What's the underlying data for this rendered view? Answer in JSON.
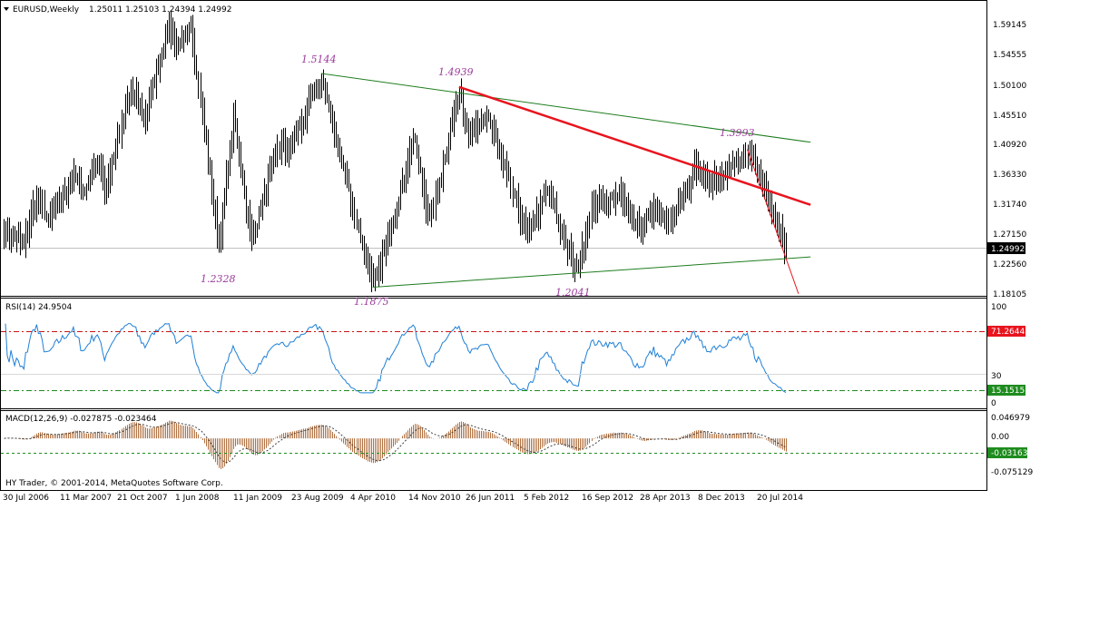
{
  "header": {
    "symbol_label": "EURUSD,Weekly",
    "ohlc": "1.25011 1.25103 1.24394 1.24992"
  },
  "price_panel": {
    "ticks": [
      "1.59145",
      "1.54555",
      "1.50100",
      "1.45510",
      "1.40920",
      "1.36330",
      "1.31740",
      "1.27150",
      "1.22560",
      "1.18105"
    ],
    "current_price": "1.24992",
    "annotations": [
      "1.5144",
      "1.4939",
      "1.3993",
      "1.2328",
      "1.1875",
      "1.2041"
    ]
  },
  "rsi_panel": {
    "title": "RSI(14) 24.9504",
    "ticks": [
      "100",
      "30",
      "0"
    ],
    "level_high_tag": "71.2644",
    "level_low_tag": "15.1515"
  },
  "macd_panel": {
    "title": "MACD(12,26,9) -0.027875 -0.023464",
    "ticks": [
      "0.046979",
      "0.00",
      "-0.075129"
    ],
    "signal_tag": "-0.03163"
  },
  "footer": {
    "copyright": "HY Trader, © 2001-2014, MetaQuotes Software Corp."
  },
  "time_axis": {
    "labels": [
      "30 Jul 2006",
      "11 Mar 2007",
      "21 Oct 2007",
      "1 Jun 2008",
      "11 Jan 2009",
      "23 Aug 2009",
      "4 Apr 2010",
      "14 Nov 2010",
      "26 Jun 2011",
      "5 Feb 2012",
      "16 Sep 2012",
      "28 Apr 2013",
      "8 Dec 2013",
      "20 Jul 2014"
    ]
  },
  "colors": {
    "bars": "#000000",
    "trend_green": "#1e7d1e",
    "trend_red": "#e8141e",
    "rsi_line": "#1e7fd6",
    "rsi_high_level": "#c81414",
    "rsi_low_level": "#1e8c1e",
    "macd_hist": "#b07040",
    "annotation": "#9b3c9b"
  },
  "chart_data": {
    "type": "ohlc",
    "timeframe": "Weekly",
    "x_start": "2006-07-30",
    "x_end": "2014-09-28",
    "price_ylim": [
      1.18105,
      1.59145
    ],
    "price_pivots": [
      [
        "2006-07-30",
        1.28
      ],
      [
        "2006-10-15",
        1.255
      ],
      [
        "2006-12-03",
        1.33
      ],
      [
        "2007-01-14",
        1.29
      ],
      [
        "2007-04-22",
        1.36
      ],
      [
        "2007-06-03",
        1.335
      ],
      [
        "2007-07-22",
        1.385
      ],
      [
        "2007-08-19",
        1.34
      ],
      [
        "2007-11-25",
        1.49
      ],
      [
        "2008-01-20",
        1.45
      ],
      [
        "2008-04-20",
        1.59
      ],
      [
        "2008-05-25",
        1.545
      ],
      [
        "2008-07-13",
        1.59
      ],
      [
        "2008-10-26",
        1.25
      ],
      [
        "2008-12-21",
        1.45
      ],
      [
        "2009-03-01",
        1.26
      ],
      [
        "2009-06-07",
        1.4
      ],
      [
        "2009-07-19",
        1.4
      ],
      [
        "2009-11-22",
        1.505
      ],
      [
        "2010-06-06",
        1.19
      ],
      [
        "2010-08-29",
        1.3
      ],
      [
        "2010-11-07",
        1.42
      ],
      [
        "2011-01-09",
        1.29
      ],
      [
        "2011-05-01",
        1.49
      ],
      [
        "2011-06-12",
        1.42
      ],
      [
        "2011-08-21",
        1.45
      ],
      [
        "2011-11-20",
        1.33
      ],
      [
        "2012-01-15",
        1.27
      ],
      [
        "2012-04-01",
        1.335
      ],
      [
        "2012-07-22",
        1.21
      ],
      [
        "2012-09-16",
        1.31
      ],
      [
        "2012-12-30",
        1.33
      ],
      [
        "2013-03-24",
        1.28
      ],
      [
        "2013-05-12",
        1.31
      ],
      [
        "2013-07-07",
        1.28
      ],
      [
        "2013-10-27",
        1.38
      ],
      [
        "2013-11-17",
        1.345
      ],
      [
        "2014-05-04",
        1.39
      ],
      [
        "2014-06-22",
        1.36
      ],
      [
        "2014-09-28",
        1.25
      ]
    ],
    "trendlines": [
      {
        "color": "green",
        "from": [
          "2009-11-22",
          1.5144
        ],
        "to": [
          "2014-12-31",
          1.41
        ]
      },
      {
        "color": "green",
        "from": [
          "2010-06-06",
          1.19
        ],
        "to": [
          "2014-12-31",
          1.236
        ]
      },
      {
        "color": "red",
        "from": [
          "2011-05-01",
          1.4939
        ],
        "to": [
          "2014-12-31",
          1.315
        ]
      },
      {
        "color": "red",
        "from": [
          "2014-05-04",
          1.3993
        ],
        "to": [
          "2014-11-15",
          1.18
        ]
      }
    ],
    "rsi_ylim": [
      0,
      100
    ],
    "rsi_levels": [
      71.2644,
      15.1515
    ],
    "rsi_last": 24.9504,
    "macd_ylim": [
      -0.075129,
      0.046979
    ],
    "macd_last": [
      -0.027875,
      -0.023464
    ]
  }
}
